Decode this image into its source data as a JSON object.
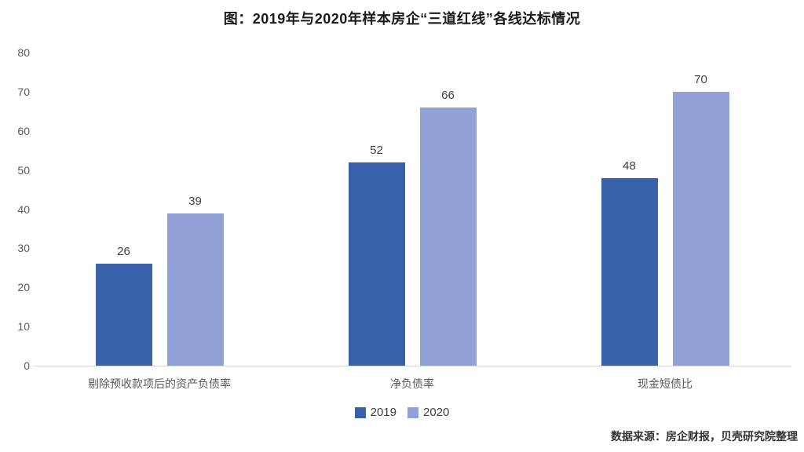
{
  "page": {
    "title": "图：2019年与2020年样本房企“三道红线”各线达标情况",
    "source_note": "数据来源：房企财报，贝壳研究院整理"
  },
  "colors": {
    "series_2019": "#3A62AB",
    "series_2020": "#8FA1D5",
    "axis_line": "#D9D9D9",
    "tick_label": "#595959",
    "value_label": "#404040",
    "category_label": "#595959",
    "background": "#FFFFFF"
  },
  "chart_data": {
    "type": "bar",
    "title": "图：2019年与2020年样本房企“三道红线”各线达标情况",
    "categories": [
      "剔除预收款项后的资产负债率",
      "净负债率",
      "现金短债比"
    ],
    "series": [
      {
        "name": "2019",
        "color": "#3A62AB",
        "values": [
          26,
          52,
          48
        ]
      },
      {
        "name": "2020",
        "color": "#8FA1D5",
        "values": [
          39,
          66,
          70
        ]
      }
    ],
    "ylim": [
      0,
      80
    ],
    "yticks": [
      0,
      10,
      20,
      30,
      40,
      50,
      60,
      70,
      80
    ],
    "grid": false,
    "data_labels": true,
    "legend_position": "bottom",
    "source": "数据来源：房企财报，贝壳研究院整理"
  }
}
